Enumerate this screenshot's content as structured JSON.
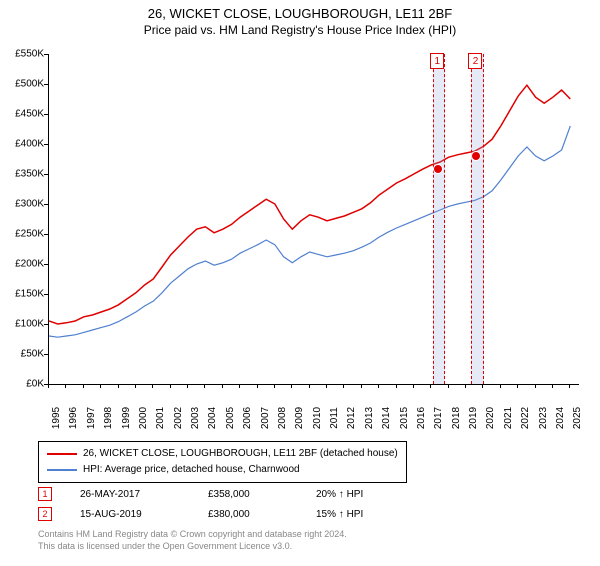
{
  "title_line1": "26, WICKET CLOSE, LOUGHBOROUGH, LE11 2BF",
  "title_line2": "Price paid vs. HM Land Registry's House Price Index (HPI)",
  "chart": {
    "type": "line",
    "background_color": "#ffffff",
    "x_years": [
      1995,
      1996,
      1997,
      1998,
      1999,
      2000,
      2001,
      2002,
      2003,
      2004,
      2005,
      2006,
      2007,
      2008,
      2009,
      2010,
      2011,
      2012,
      2013,
      2014,
      2015,
      2016,
      2017,
      2018,
      2019,
      2020,
      2021,
      2022,
      2023,
      2024,
      2025
    ],
    "xlim": [
      1995,
      2025.5
    ],
    "ylim": [
      0,
      550
    ],
    "ytick_step": 50,
    "ytick_prefix": "£",
    "ytick_suffix": "K",
    "axis_color": "#000000",
    "tick_fontsize": 10,
    "series": [
      {
        "name": "26, WICKET CLOSE, LOUGHBOROUGH, LE11 2BF (detached house)",
        "color": "#e00000",
        "line_width": 1.5,
        "data": [
          [
            1995,
            105
          ],
          [
            1995.5,
            100
          ],
          [
            1996,
            102
          ],
          [
            1996.5,
            105
          ],
          [
            1997,
            112
          ],
          [
            1997.5,
            115
          ],
          [
            1998,
            120
          ],
          [
            1998.5,
            125
          ],
          [
            1999,
            132
          ],
          [
            1999.5,
            142
          ],
          [
            2000,
            152
          ],
          [
            2000.5,
            165
          ],
          [
            2001,
            175
          ],
          [
            2001.5,
            195
          ],
          [
            2002,
            215
          ],
          [
            2002.5,
            230
          ],
          [
            2003,
            245
          ],
          [
            2003.5,
            258
          ],
          [
            2004,
            262
          ],
          [
            2004.5,
            252
          ],
          [
            2005,
            258
          ],
          [
            2005.5,
            266
          ],
          [
            2006,
            278
          ],
          [
            2006.5,
            288
          ],
          [
            2007,
            298
          ],
          [
            2007.5,
            308
          ],
          [
            2008,
            300
          ],
          [
            2008.5,
            275
          ],
          [
            2009,
            258
          ],
          [
            2009.5,
            272
          ],
          [
            2010,
            282
          ],
          [
            2010.5,
            278
          ],
          [
            2011,
            272
          ],
          [
            2011.5,
            276
          ],
          [
            2012,
            280
          ],
          [
            2012.5,
            286
          ],
          [
            2013,
            292
          ],
          [
            2013.5,
            302
          ],
          [
            2014,
            315
          ],
          [
            2014.5,
            325
          ],
          [
            2015,
            335
          ],
          [
            2015.5,
            342
          ],
          [
            2016,
            350
          ],
          [
            2016.5,
            358
          ],
          [
            2017,
            365
          ],
          [
            2017.5,
            370
          ],
          [
            2018,
            378
          ],
          [
            2018.5,
            382
          ],
          [
            2019,
            385
          ],
          [
            2019.5,
            388
          ],
          [
            2020,
            396
          ],
          [
            2020.5,
            408
          ],
          [
            2021,
            430
          ],
          [
            2021.5,
            455
          ],
          [
            2022,
            480
          ],
          [
            2022.5,
            498
          ],
          [
            2023,
            478
          ],
          [
            2023.5,
            468
          ],
          [
            2024,
            478
          ],
          [
            2024.5,
            490
          ],
          [
            2025,
            475
          ]
        ]
      },
      {
        "name": "HPI: Average price, detached house, Charnwood",
        "color": "#5080d0",
        "line_width": 1.2,
        "data": [
          [
            1995,
            80
          ],
          [
            1995.5,
            78
          ],
          [
            1996,
            80
          ],
          [
            1996.5,
            82
          ],
          [
            1997,
            86
          ],
          [
            1997.5,
            90
          ],
          [
            1998,
            94
          ],
          [
            1998.5,
            98
          ],
          [
            1999,
            104
          ],
          [
            1999.5,
            112
          ],
          [
            2000,
            120
          ],
          [
            2000.5,
            130
          ],
          [
            2001,
            138
          ],
          [
            2001.5,
            152
          ],
          [
            2002,
            168
          ],
          [
            2002.5,
            180
          ],
          [
            2003,
            192
          ],
          [
            2003.5,
            200
          ],
          [
            2004,
            205
          ],
          [
            2004.5,
            198
          ],
          [
            2005,
            202
          ],
          [
            2005.5,
            208
          ],
          [
            2006,
            218
          ],
          [
            2006.5,
            225
          ],
          [
            2007,
            232
          ],
          [
            2007.5,
            240
          ],
          [
            2008,
            232
          ],
          [
            2008.5,
            212
          ],
          [
            2009,
            202
          ],
          [
            2009.5,
            212
          ],
          [
            2010,
            220
          ],
          [
            2010.5,
            216
          ],
          [
            2011,
            212
          ],
          [
            2011.5,
            215
          ],
          [
            2012,
            218
          ],
          [
            2012.5,
            222
          ],
          [
            2013,
            228
          ],
          [
            2013.5,
            235
          ],
          [
            2014,
            245
          ],
          [
            2014.5,
            253
          ],
          [
            2015,
            260
          ],
          [
            2015.5,
            266
          ],
          [
            2016,
            272
          ],
          [
            2016.5,
            278
          ],
          [
            2017,
            284
          ],
          [
            2017.5,
            290
          ],
          [
            2018,
            296
          ],
          [
            2018.5,
            300
          ],
          [
            2019,
            303
          ],
          [
            2019.5,
            306
          ],
          [
            2020,
            312
          ],
          [
            2020.5,
            322
          ],
          [
            2021,
            340
          ],
          [
            2021.5,
            360
          ],
          [
            2022,
            380
          ],
          [
            2022.5,
            395
          ],
          [
            2023,
            380
          ],
          [
            2023.5,
            372
          ],
          [
            2024,
            380
          ],
          [
            2024.5,
            390
          ],
          [
            2025,
            430
          ]
        ]
      }
    ],
    "sales": [
      {
        "n": "1",
        "year": 2017.4,
        "value": 358,
        "date": "26-MAY-2017",
        "price": "£358,000",
        "vs_hpi": "20% ↑ HPI"
      },
      {
        "n": "2",
        "year": 2019.6,
        "value": 380,
        "date": "15-AUG-2019",
        "price": "£380,000",
        "vs_hpi": "15% ↑ HPI"
      }
    ],
    "sale_band_width_years": 0.6,
    "sale_marker_color": "#e00000",
    "sale_band_color": "rgba(150,170,220,0.25)"
  },
  "legend": {
    "items": [
      {
        "color": "#e00000",
        "label": "26, WICKET CLOSE, LOUGHBOROUGH, LE11 2BF (detached house)"
      },
      {
        "color": "#5080d0",
        "label": "HPI: Average price, detached house, Charnwood"
      }
    ]
  },
  "footnote_line1": "Contains HM Land Registry data © Crown copyright and database right 2024.",
  "footnote_line2": "This data is licensed under the Open Government Licence v3.0."
}
